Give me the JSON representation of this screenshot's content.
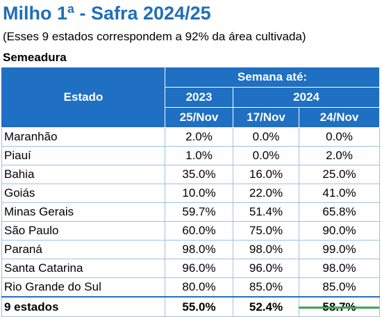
{
  "title": "Milho 1ª - Safra 2024/25",
  "subtitle": "(Esses 9 estados correspondem a 92% da área cultivada)",
  "section": "Semeadura",
  "table": {
    "header": {
      "estado": "Estado",
      "semana": "Semana até:",
      "year1": "2023",
      "year2": "2024",
      "date1": "25/Nov",
      "date2": "17/Nov",
      "date3": "24/Nov"
    },
    "rows": [
      {
        "estado": "Maranhão",
        "v1": "2.0%",
        "v2": "0.0%",
        "v3": "0.0%"
      },
      {
        "estado": "Piauí",
        "v1": "1.0%",
        "v2": "0.0%",
        "v3": "2.0%"
      },
      {
        "estado": "Bahia",
        "v1": "35.0%",
        "v2": "16.0%",
        "v3": "25.0%"
      },
      {
        "estado": "Goiás",
        "v1": "10.0%",
        "v2": "22.0%",
        "v3": "41.0%"
      },
      {
        "estado": "Minas Gerais",
        "v1": "59.7%",
        "v2": "51.4%",
        "v3": "65.8%"
      },
      {
        "estado": "São Paulo",
        "v1": "60.0%",
        "v2": "75.0%",
        "v3": "90.0%"
      },
      {
        "estado": "Paraná",
        "v1": "98.0%",
        "v2": "98.0%",
        "v3": "99.0%"
      },
      {
        "estado": "Santa Catarina",
        "v1": "96.0%",
        "v2": "96.0%",
        "v3": "98.0%"
      },
      {
        "estado": "Rio Grande do Sul",
        "v1": "80.0%",
        "v2": "85.0%",
        "v3": "85.0%"
      }
    ],
    "total": {
      "estado": "9 estados",
      "v1": "55.0%",
      "v2": "52.4%",
      "v3": "58.7%"
    }
  },
  "colors": {
    "header_bg": "#1f6fc2",
    "title": "#1f6fb5",
    "grid": "#9ec0e4",
    "accent_green": "#3aa655"
  }
}
